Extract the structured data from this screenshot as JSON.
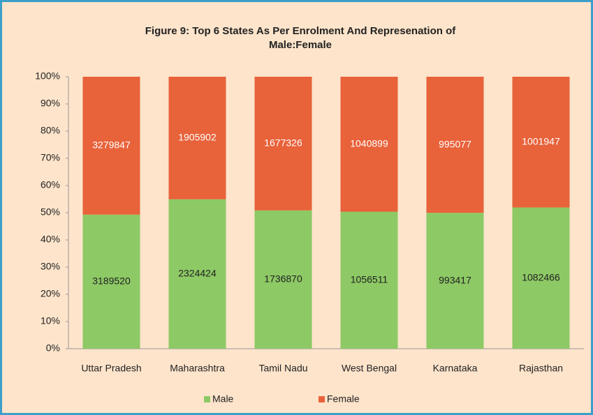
{
  "chart_data": {
    "type": "bar",
    "stacking": "percent",
    "title": "Figure 9: Top 6 States As Per Enrolment And Represenation of",
    "subtitle": "Male:Female",
    "categories": [
      "Uttar Pradesh",
      "Maharashtra",
      "Tamil Nadu",
      "West Bengal",
      "Karnataka",
      "Rajasthan"
    ],
    "series": [
      {
        "name": "Male",
        "color": "#8dc965",
        "values": [
          3189520,
          2324424,
          1736870,
          1056511,
          993417,
          1082466
        ]
      },
      {
        "name": "Female",
        "color": "#e8623a",
        "values": [
          3279847,
          1905902,
          1677326,
          1040899,
          995077,
          1001947
        ]
      }
    ],
    "ylim": [
      0,
      100
    ],
    "yticks": [
      {
        "value": 0,
        "label": "0%"
      },
      {
        "value": 10,
        "label": "10%"
      },
      {
        "value": 20,
        "label": "20%"
      },
      {
        "value": 30,
        "label": "30%"
      },
      {
        "value": 40,
        "label": "40%"
      },
      {
        "value": 50,
        "label": "50%"
      },
      {
        "value": 60,
        "label": "60%"
      },
      {
        "value": 70,
        "label": "70%"
      },
      {
        "value": 80,
        "label": "80%"
      },
      {
        "value": 90,
        "label": "90%"
      },
      {
        "value": 100,
        "label": "100%"
      }
    ],
    "grid": false,
    "legend": "bottom"
  }
}
